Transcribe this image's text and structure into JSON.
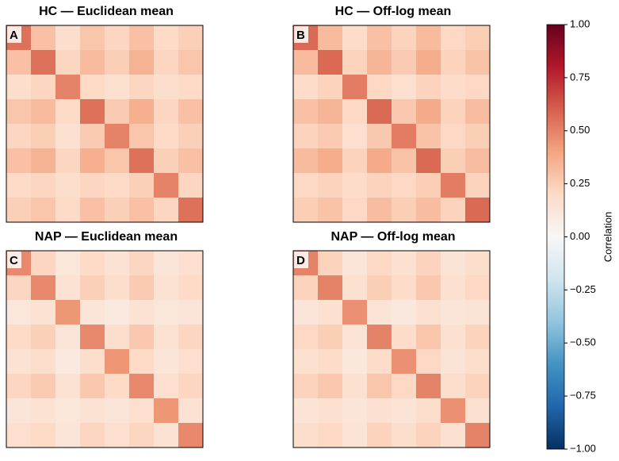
{
  "chart_data": [
    {
      "type": "heatmap",
      "title": "HC — Euclidean mean",
      "panel_label": "A",
      "values": [
        [
          0.55,
          0.3,
          0.18,
          0.28,
          0.22,
          0.3,
          0.2,
          0.24
        ],
        [
          0.3,
          0.55,
          0.22,
          0.32,
          0.25,
          0.35,
          0.22,
          0.28
        ],
        [
          0.18,
          0.22,
          0.5,
          0.2,
          0.16,
          0.22,
          0.18,
          0.2
        ],
        [
          0.28,
          0.32,
          0.2,
          0.55,
          0.26,
          0.36,
          0.22,
          0.3
        ],
        [
          0.22,
          0.25,
          0.16,
          0.26,
          0.5,
          0.28,
          0.2,
          0.24
        ],
        [
          0.3,
          0.35,
          0.22,
          0.36,
          0.28,
          0.55,
          0.24,
          0.3
        ],
        [
          0.2,
          0.22,
          0.18,
          0.22,
          0.2,
          0.24,
          0.5,
          0.22
        ],
        [
          0.24,
          0.28,
          0.2,
          0.3,
          0.24,
          0.3,
          0.22,
          0.55
        ]
      ]
    },
    {
      "type": "heatmap",
      "title": "HC — Off-log mean",
      "panel_label": "B",
      "values": [
        [
          0.57,
          0.32,
          0.19,
          0.3,
          0.23,
          0.32,
          0.21,
          0.25
        ],
        [
          0.32,
          0.57,
          0.23,
          0.34,
          0.26,
          0.37,
          0.23,
          0.29
        ],
        [
          0.19,
          0.23,
          0.52,
          0.21,
          0.17,
          0.23,
          0.19,
          0.21
        ],
        [
          0.3,
          0.34,
          0.21,
          0.57,
          0.27,
          0.38,
          0.23,
          0.31
        ],
        [
          0.23,
          0.26,
          0.17,
          0.27,
          0.52,
          0.29,
          0.21,
          0.25
        ],
        [
          0.32,
          0.37,
          0.23,
          0.38,
          0.29,
          0.57,
          0.25,
          0.31
        ],
        [
          0.21,
          0.23,
          0.19,
          0.23,
          0.21,
          0.25,
          0.52,
          0.23
        ],
        [
          0.25,
          0.29,
          0.21,
          0.31,
          0.25,
          0.31,
          0.23,
          0.57
        ]
      ]
    },
    {
      "type": "heatmap",
      "title": "NAP — Euclidean mean",
      "panel_label": "C",
      "values": [
        [
          0.48,
          0.22,
          0.12,
          0.2,
          0.15,
          0.22,
          0.13,
          0.17
        ],
        [
          0.22,
          0.48,
          0.15,
          0.24,
          0.18,
          0.26,
          0.15,
          0.2
        ],
        [
          0.12,
          0.15,
          0.44,
          0.13,
          0.1,
          0.15,
          0.12,
          0.13
        ],
        [
          0.2,
          0.24,
          0.13,
          0.48,
          0.18,
          0.27,
          0.15,
          0.22
        ],
        [
          0.15,
          0.18,
          0.1,
          0.18,
          0.44,
          0.2,
          0.13,
          0.17
        ],
        [
          0.22,
          0.26,
          0.15,
          0.27,
          0.2,
          0.48,
          0.17,
          0.22
        ],
        [
          0.13,
          0.15,
          0.12,
          0.15,
          0.13,
          0.17,
          0.44,
          0.15
        ],
        [
          0.17,
          0.2,
          0.13,
          0.22,
          0.17,
          0.22,
          0.15,
          0.48
        ]
      ]
    },
    {
      "type": "heatmap",
      "title": "NAP — Off-log mean",
      "panel_label": "D",
      "values": [
        [
          0.5,
          0.23,
          0.13,
          0.21,
          0.16,
          0.23,
          0.14,
          0.18
        ],
        [
          0.23,
          0.5,
          0.16,
          0.25,
          0.19,
          0.27,
          0.16,
          0.21
        ],
        [
          0.13,
          0.16,
          0.46,
          0.14,
          0.11,
          0.16,
          0.13,
          0.14
        ],
        [
          0.21,
          0.25,
          0.14,
          0.5,
          0.19,
          0.28,
          0.16,
          0.23
        ],
        [
          0.16,
          0.19,
          0.11,
          0.19,
          0.46,
          0.21,
          0.14,
          0.18
        ],
        [
          0.23,
          0.27,
          0.16,
          0.28,
          0.21,
          0.5,
          0.18,
          0.23
        ],
        [
          0.14,
          0.16,
          0.13,
          0.16,
          0.14,
          0.18,
          0.46,
          0.16
        ],
        [
          0.18,
          0.21,
          0.14,
          0.23,
          0.18,
          0.23,
          0.16,
          0.5
        ]
      ]
    }
  ],
  "colorbar": {
    "label": "Correlation",
    "lim": [
      -1,
      1
    ],
    "colors": [
      "#053061",
      "#2166ac",
      "#4393c3",
      "#92c5de",
      "#d1e5f0",
      "#f7f7f7",
      "#fddbc7",
      "#f4a582",
      "#d6604d",
      "#b2182b",
      "#67001f"
    ],
    "ticks": [
      {
        "value": -1,
        "label": "−1.00"
      },
      {
        "value": -0.75,
        "label": "−0.75"
      },
      {
        "value": -0.5,
        "label": "−0.50"
      },
      {
        "value": -0.25,
        "label": "−0.25"
      },
      {
        "value": 0,
        "label": "0.00"
      },
      {
        "value": 0.25,
        "label": "0.25"
      },
      {
        "value": 0.5,
        "label": "0.50"
      },
      {
        "value": 0.75,
        "label": "0.75"
      },
      {
        "value": 1,
        "label": "1.00"
      }
    ]
  }
}
